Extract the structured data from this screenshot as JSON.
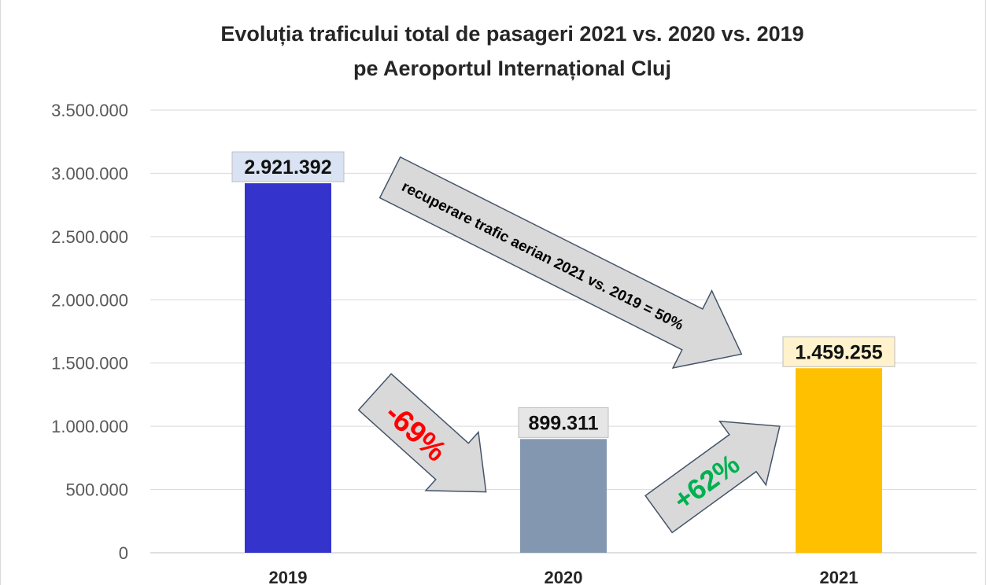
{
  "chart_data": {
    "type": "bar",
    "title_line1": "Evoluția traficului total de pasageri 2021 vs. 2020 vs. 2019",
    "title_line2": "pe Aeroportul Internațional Cluj",
    "categories": [
      "2019",
      "2020",
      "2021"
    ],
    "values": [
      2921392,
      899311,
      1459255
    ],
    "data_labels": [
      "2.921.392",
      "899.311",
      "1.459.255"
    ],
    "bar_colors": [
      "#3434CC",
      "#8497B0",
      "#FFC000"
    ],
    "label_box_colors": [
      "#DAE3F3",
      "#E7E6E6",
      "#FFF2CC"
    ],
    "ylim": [
      0,
      3500000
    ],
    "yticks": [
      0,
      500000,
      1000000,
      1500000,
      2000000,
      2500000,
      3000000,
      3500000
    ],
    "ytick_labels": [
      "0",
      "500.000",
      "1.000.000",
      "1.500.000",
      "2.000.000",
      "2.500.000",
      "3.000.000",
      "3.500.000"
    ],
    "xlabel": "",
    "ylabel": "",
    "grid": true,
    "legend": "none",
    "annotations": [
      {
        "text": "-69%",
        "color": "#FF0000",
        "from": "2019",
        "to": "2020"
      },
      {
        "text": "+62%",
        "color": "#00B050",
        "from": "2020",
        "to": "2021"
      },
      {
        "text": "recuperare trafic aerian 2021 vs. 2019 = 50%",
        "color": "#000000",
        "from": "2019",
        "to": "2021"
      }
    ],
    "arrow_fill": "#D9D9D9",
    "arrow_stroke": "#44546A"
  }
}
